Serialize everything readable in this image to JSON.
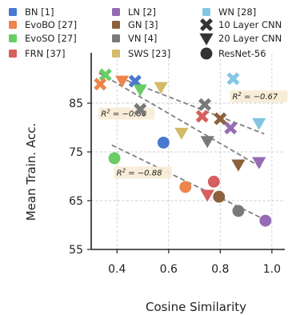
{
  "chart_data": {
    "type": "scatter",
    "xlabel": "Cosine Similarity",
    "ylabel": "Mean Train. Acc.",
    "xlim": [
      0.3,
      1.05
    ],
    "ylim": [
      55,
      95
    ],
    "xticks": [
      {
        "v": 0.4,
        "label": "0.4"
      },
      {
        "v": 0.6,
        "label": "0.6"
      },
      {
        "v": 0.8,
        "label": "0.8"
      },
      {
        "v": 1.0,
        "label": "1.0"
      }
    ],
    "yticks": [
      {
        "v": 55,
        "label": "55"
      },
      {
        "v": 65,
        "label": "65"
      },
      {
        "v": 75,
        "label": "75"
      },
      {
        "v": 85,
        "label": "85"
      }
    ],
    "grid": true,
    "legend_position": "top",
    "series": [
      {
        "name": "BN [1]",
        "color": "#4878cf"
      },
      {
        "name": "EvoBO [27]",
        "color": "#ee854a"
      },
      {
        "name": "EvoSO [27]",
        "color": "#6acc64"
      },
      {
        "name": "FRN [37]",
        "color": "#d65f5f"
      },
      {
        "name": "LN [2]",
        "color": "#956cb4"
      },
      {
        "name": "GN [3]",
        "color": "#8c613c"
      },
      {
        "name": "VN [4]",
        "color": "#797979"
      },
      {
        "name": "SWS [23]",
        "color": "#d5bb67"
      },
      {
        "name": "WN [28]",
        "color": "#82c6e2"
      }
    ],
    "marker_legend": [
      {
        "name": "10 Layer CNN",
        "marker": "cross"
      },
      {
        "name": "20 Layer CNN",
        "marker": "tri"
      },
      {
        "name": "ResNet-56",
        "marker": "circle"
      }
    ],
    "points": [
      {
        "x": 0.355,
        "y": 90.8,
        "series": 2,
        "marker": "cross"
      },
      {
        "x": 0.335,
        "y": 88.9,
        "series": 1,
        "marker": "cross"
      },
      {
        "x": 0.47,
        "y": 89.5,
        "series": 0,
        "marker": "cross"
      },
      {
        "x": 0.49,
        "y": 83.7,
        "series": 6,
        "marker": "cross"
      },
      {
        "x": 0.73,
        "y": 82.3,
        "series": 3,
        "marker": "cross"
      },
      {
        "x": 0.74,
        "y": 84.7,
        "series": 6,
        "marker": "cross"
      },
      {
        "x": 0.8,
        "y": 81.8,
        "series": 5,
        "marker": "cross"
      },
      {
        "x": 0.84,
        "y": 79.9,
        "series": 4,
        "marker": "cross"
      },
      {
        "x": 0.85,
        "y": 90.0,
        "series": 8,
        "marker": "cross"
      },
      {
        "x": 0.42,
        "y": 89.6,
        "series": 1,
        "marker": "tri"
      },
      {
        "x": 0.49,
        "y": 87.8,
        "series": 2,
        "marker": "tri"
      },
      {
        "x": 0.57,
        "y": 88.3,
        "series": 7,
        "marker": "tri"
      },
      {
        "x": 0.65,
        "y": 78.9,
        "series": 7,
        "marker": "tri"
      },
      {
        "x": 0.75,
        "y": 77.2,
        "series": 6,
        "marker": "tri"
      },
      {
        "x": 0.87,
        "y": 72.4,
        "series": 5,
        "marker": "tri"
      },
      {
        "x": 0.95,
        "y": 72.9,
        "series": 4,
        "marker": "tri"
      },
      {
        "x": 0.95,
        "y": 80.9,
        "series": 8,
        "marker": "tri"
      },
      {
        "x": 0.75,
        "y": 66.2,
        "series": 3,
        "marker": "tri"
      },
      {
        "x": 0.39,
        "y": 73.7,
        "series": 2,
        "marker": "circle"
      },
      {
        "x": 0.58,
        "y": 76.9,
        "series": 0,
        "marker": "circle"
      },
      {
        "x": 0.665,
        "y": 67.8,
        "series": 1,
        "marker": "circle"
      },
      {
        "x": 0.775,
        "y": 68.9,
        "series": 3,
        "marker": "circle"
      },
      {
        "x": 0.795,
        "y": 65.8,
        "series": 5,
        "marker": "circle"
      },
      {
        "x": 0.87,
        "y": 62.9,
        "series": 6,
        "marker": "circle"
      },
      {
        "x": 0.975,
        "y": 60.9,
        "series": 4,
        "marker": "circle"
      }
    ],
    "trendlines": [
      {
        "label": "R^2 = −0.67",
        "x1": 0.41,
        "y1": 90.2,
        "x2": 0.97,
        "y2": 78.7
      },
      {
        "label": "R^2 = −0.66",
        "x1": 0.33,
        "y1": 91.2,
        "x2": 0.96,
        "y2": 71.8
      },
      {
        "label": "R^2 = −0.88",
        "x1": 0.38,
        "y1": 76.4,
        "x2": 0.985,
        "y2": 60.8
      }
    ],
    "annotations": [
      {
        "text": "R",
        "sup": "2",
        "rest": " = −0.67"
      },
      {
        "text": "R",
        "sup": "2",
        "rest": " = −0.66"
      },
      {
        "text": "R",
        "sup": "2",
        "rest": " = −0.88"
      }
    ]
  }
}
